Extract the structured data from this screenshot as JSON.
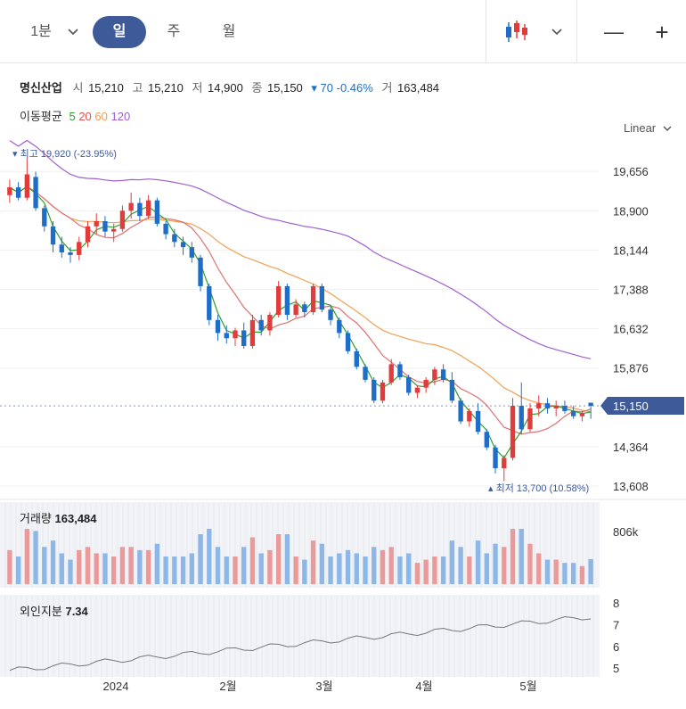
{
  "toolbar": {
    "interval_label": "1분",
    "tabs": [
      {
        "label": "일",
        "active": true
      },
      {
        "label": "주",
        "active": false
      },
      {
        "label": "월",
        "active": false
      }
    ],
    "chart_type_icon": "candlestick-icon",
    "zoom_out": "—",
    "zoom_in": "+"
  },
  "info": {
    "name": "명신산업",
    "open_label": "시",
    "open": "15,210",
    "high_label": "고",
    "high": "15,210",
    "low_label": "저",
    "low": "14,900",
    "close_label": "종",
    "close": "15,150",
    "change": "▾ 70 -0.46%",
    "volume_label": "거",
    "volume": "163,484"
  },
  "ma_legend": {
    "label": "이동평균",
    "periods": [
      {
        "p": "5",
        "color": "#2ca02c"
      },
      {
        "p": "20",
        "color": "#e05050"
      },
      {
        "p": "60",
        "color": "#f0a050"
      },
      {
        "p": "120",
        "color": "#a060d0"
      }
    ]
  },
  "scale_label": "Linear",
  "colors": {
    "up": "#e03c3c",
    "down": "#1e6ec8",
    "accent": "#3e5a99",
    "ma5": "#2ca02c",
    "ma20": "#e07070",
    "ma60": "#f0a050",
    "ma120": "#a060d0"
  },
  "chart_data": {
    "type": "candlestick",
    "price_axis": {
      "ticks": [
        "19,656",
        "18,900",
        "18,144",
        "17,388",
        "16,632",
        "15,876",
        "15,150",
        "14,364",
        "13,608"
      ],
      "ylim": [
        13608,
        19900
      ]
    },
    "current_price": "15,150",
    "high_marker": "▾ 최고 19,920 (-23.95%)",
    "low_marker": "▴ 최저 13,700 (10.58%)",
    "x_labels": [
      "2024",
      "2월",
      "3월",
      "4월",
      "5월"
    ],
    "volume": {
      "title": "거래량",
      "value": "163,484",
      "axis_label": "806k"
    },
    "foreign": {
      "title": "외인지분",
      "value": "7.34",
      "ticks": [
        "8",
        "7",
        "6",
        "5"
      ]
    },
    "candles": [
      [
        19200,
        19500,
        19050,
        19350
      ],
      [
        19350,
        19450,
        19100,
        19150
      ],
      [
        19150,
        19920,
        19100,
        19600
      ],
      [
        19550,
        19650,
        18900,
        18950
      ],
      [
        18950,
        19000,
        18500,
        18600
      ],
      [
        18600,
        18700,
        18100,
        18250
      ],
      [
        18250,
        18400,
        18000,
        18100
      ],
      [
        18100,
        18200,
        17900,
        18050
      ],
      [
        18050,
        18400,
        17950,
        18300
      ],
      [
        18300,
        18700,
        18200,
        18600
      ],
      [
        18600,
        18850,
        18450,
        18700
      ],
      [
        18700,
        18800,
        18400,
        18500
      ],
      [
        18500,
        18650,
        18300,
        18550
      ],
      [
        18550,
        19000,
        18500,
        18900
      ],
      [
        18900,
        19250,
        18750,
        19050
      ],
      [
        19050,
        19150,
        18700,
        18800
      ],
      [
        18800,
        19200,
        18750,
        19100
      ],
      [
        19100,
        19150,
        18600,
        18650
      ],
      [
        18650,
        18700,
        18350,
        18450
      ],
      [
        18450,
        18550,
        18200,
        18300
      ],
      [
        18300,
        18400,
        18050,
        18200
      ],
      [
        18200,
        18300,
        17900,
        18000
      ],
      [
        18000,
        18050,
        17350,
        17450
      ],
      [
        17450,
        17500,
        16700,
        16800
      ],
      [
        16800,
        16900,
        16400,
        16550
      ],
      [
        16550,
        16700,
        16350,
        16450
      ],
      [
        16450,
        16650,
        16300,
        16600
      ],
      [
        16600,
        16750,
        16250,
        16300
      ],
      [
        16300,
        16900,
        16250,
        16800
      ],
      [
        16800,
        16900,
        16500,
        16600
      ],
      [
        16600,
        16950,
        16500,
        16900
      ],
      [
        16900,
        17550,
        16850,
        17450
      ],
      [
        17450,
        17500,
        16800,
        16900
      ],
      [
        16900,
        17200,
        16850,
        17100
      ],
      [
        17100,
        17150,
        16850,
        16950
      ],
      [
        16950,
        17500,
        16900,
        17450
      ],
      [
        17450,
        17500,
        16950,
        17000
      ],
      [
        17000,
        17050,
        16700,
        16800
      ],
      [
        16800,
        16850,
        16450,
        16550
      ],
      [
        16550,
        16600,
        16150,
        16200
      ],
      [
        16200,
        16250,
        15850,
        15900
      ],
      [
        15900,
        15950,
        15600,
        15650
      ],
      [
        15650,
        15700,
        15200,
        15250
      ],
      [
        15250,
        15650,
        15200,
        15600
      ],
      [
        15600,
        16050,
        15550,
        15950
      ],
      [
        15950,
        16000,
        15650,
        15700
      ],
      [
        15700,
        15750,
        15350,
        15400
      ],
      [
        15400,
        15550,
        15300,
        15500
      ],
      [
        15500,
        15700,
        15400,
        15650
      ],
      [
        15650,
        15900,
        15550,
        15850
      ],
      [
        15850,
        15950,
        15600,
        15650
      ],
      [
        15650,
        15800,
        15200,
        15250
      ],
      [
        15250,
        15300,
        14800,
        14850
      ],
      [
        14850,
        15100,
        14750,
        15050
      ],
      [
        15050,
        15200,
        14600,
        14650
      ],
      [
        14650,
        14700,
        14300,
        14350
      ],
      [
        14350,
        14400,
        13850,
        13950
      ],
      [
        13950,
        14200,
        13700,
        14150
      ],
      [
        14150,
        15300,
        14100,
        15150
      ],
      [
        15150,
        15600,
        14600,
        14700
      ],
      [
        14700,
        15200,
        14650,
        15100
      ],
      [
        15100,
        15350,
        14950,
        15200
      ],
      [
        15200,
        15300,
        15000,
        15100
      ],
      [
        15100,
        15250,
        14950,
        15150
      ],
      [
        15150,
        15250,
        15000,
        15050
      ],
      [
        15050,
        15150,
        14900,
        14950
      ],
      [
        14950,
        15050,
        14850,
        15000
      ],
      [
        15210,
        15210,
        14900,
        15150
      ]
    ]
  }
}
